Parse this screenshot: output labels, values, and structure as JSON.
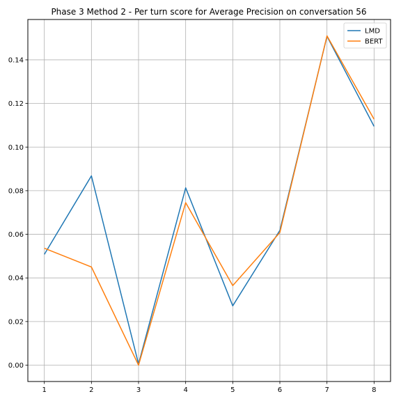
{
  "chart_data": {
    "type": "line",
    "title": "Phase 3 Method 2 - Per turn score for Average Precision on conversation 56",
    "xlabel": "",
    "ylabel": "",
    "x": [
      1,
      2,
      3,
      4,
      5,
      6,
      7,
      8
    ],
    "xticks": [
      "1",
      "2",
      "3",
      "4",
      "5",
      "6",
      "7",
      "8"
    ],
    "yticks": [
      "0.00",
      "0.02",
      "0.04",
      "0.06",
      "0.08",
      "0.10",
      "0.12",
      "0.14"
    ],
    "xlim": [
      0.65,
      8.35
    ],
    "ylim": [
      -0.0075,
      0.1585
    ],
    "grid": true,
    "legend_position": "top-right",
    "series": [
      {
        "name": "LMD",
        "color": "#1f77b4",
        "values": [
          0.0508,
          0.0868,
          0.0005,
          0.0813,
          0.0272,
          0.0618,
          0.1508,
          0.1095
        ]
      },
      {
        "name": "BERT",
        "color": "#ff7f0e",
        "values": [
          0.0536,
          0.045,
          0.0,
          0.0745,
          0.0365,
          0.0608,
          0.151,
          0.1128
        ]
      }
    ]
  }
}
